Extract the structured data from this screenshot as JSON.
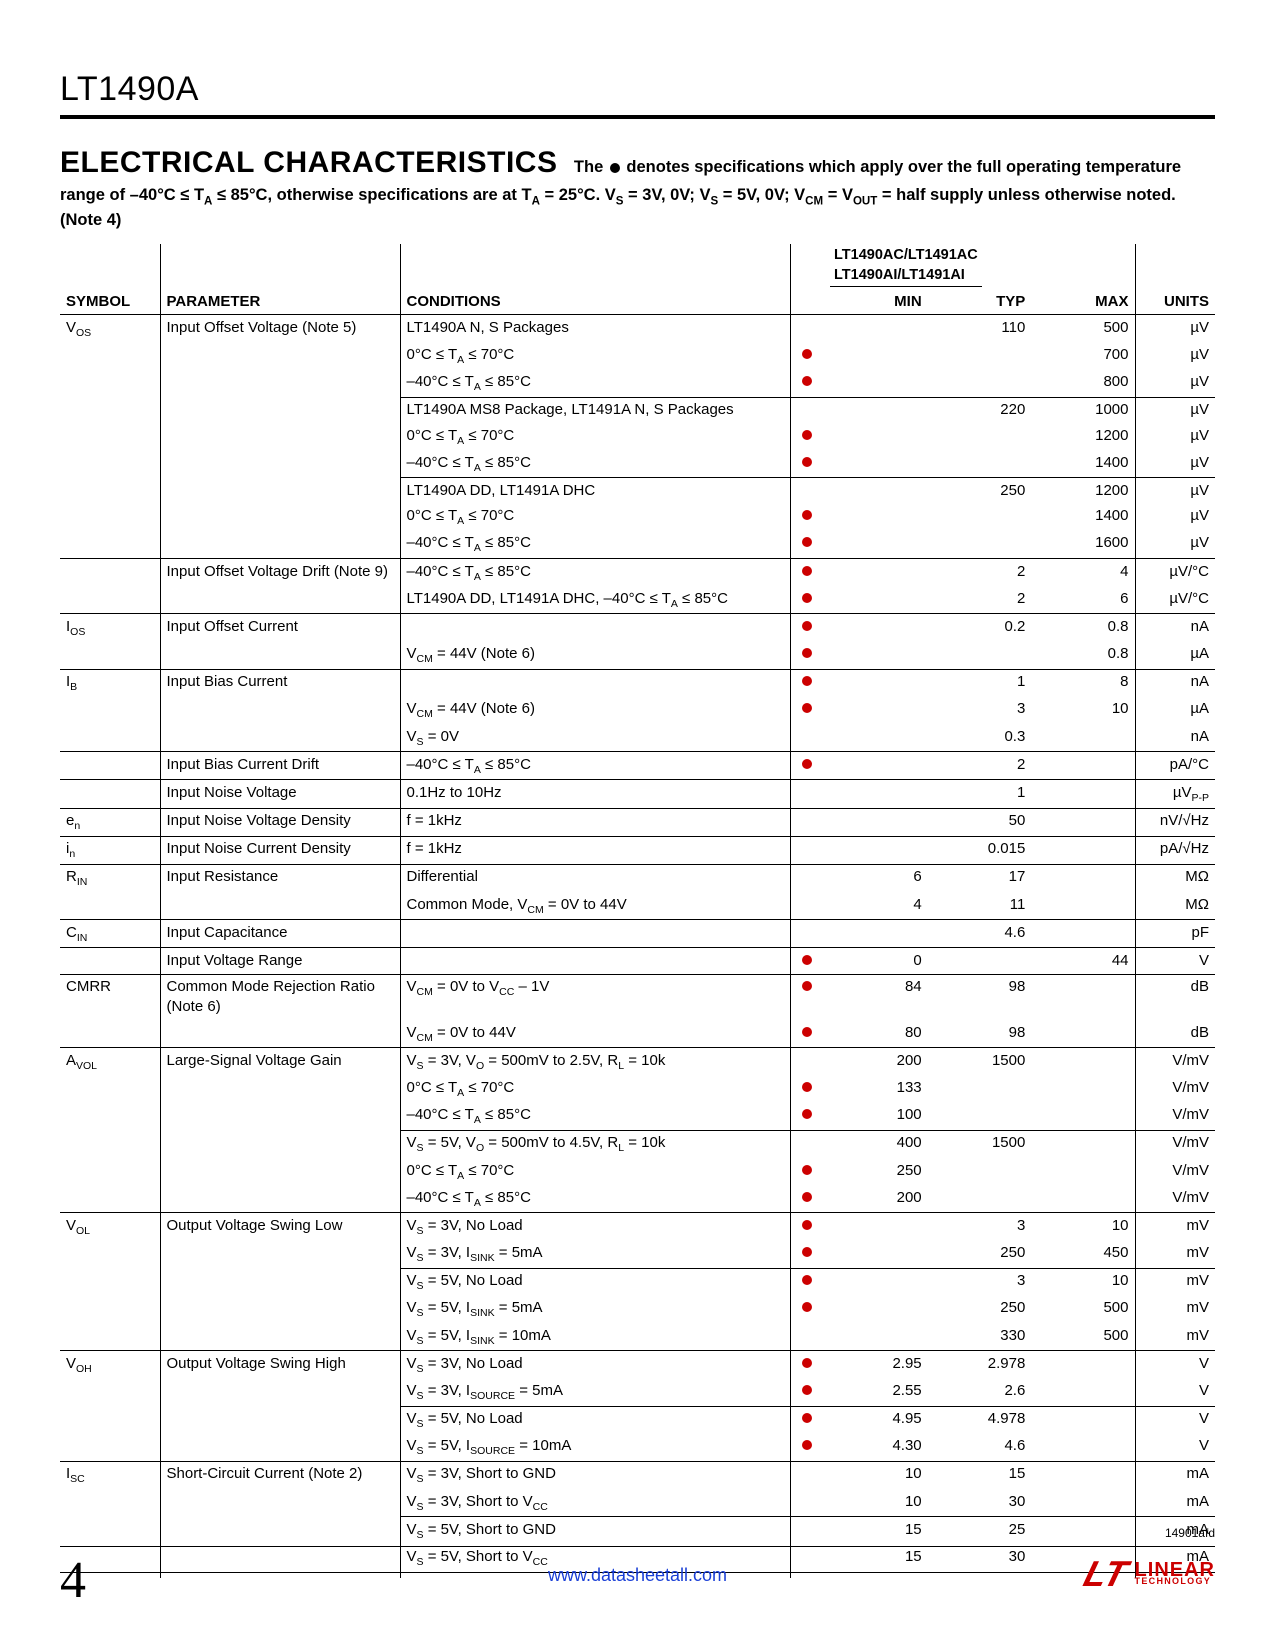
{
  "header": {
    "part_number": "LT1490A",
    "section_title": "ELECTRICAL CHARACTERISTICS",
    "desc_prefix": "The ",
    "desc_after_dot": " denotes specifications which apply over the full operating temperature range of –40°C ≤ T",
    "desc_sub1": "A",
    "desc_mid1": " ≤ 85°C, otherwise specifications are at T",
    "desc_sub2": "A",
    "desc_mid2": " = 25°C. V",
    "desc_sub3": "S",
    "desc_mid3": " = 3V, 0V; V",
    "desc_sub4": "S",
    "desc_mid4": " = 5V, 0V; V",
    "desc_sub5": "CM",
    "desc_mid5": " = V",
    "desc_sub6": "OUT",
    "desc_end": " = half supply unless otherwise noted. (Note 4)"
  },
  "table": {
    "supheader1": "LT1490AC/LT1491AC",
    "supheader2": "LT1490AI/LT1491AI",
    "columns": {
      "symbol": "SYMBOL",
      "parameter": "PARAMETER",
      "conditions": "CONDITIONS",
      "min": "MIN",
      "typ": "TYP",
      "max": "MAX",
      "units": "UNITS"
    },
    "rows": [
      {
        "sep": "major",
        "symbol_html": "V<sub>OS</sub>",
        "param": "Input Offset Voltage (Note 5)",
        "cond_html": "LT1490A N, S Packages",
        "dot": false,
        "min": "",
        "typ": "110",
        "max": "500",
        "units": "µV"
      },
      {
        "cond_html": "0°C ≤ T<sub>A</sub> ≤ 70°C",
        "dot": true,
        "max": "700",
        "units": "µV"
      },
      {
        "cond_html": "–40°C ≤ T<sub>A</sub> ≤ 85°C",
        "dot": true,
        "max": "800",
        "units": "µV"
      },
      {
        "sep": "mini",
        "cond_html": "LT1490A MS8 Package, LT1491A N, S Packages",
        "dot": false,
        "typ": "220",
        "max": "1000",
        "units": "µV"
      },
      {
        "cond_html": "0°C ≤ T<sub>A</sub> ≤ 70°C",
        "dot": true,
        "max": "1200",
        "units": "µV"
      },
      {
        "cond_html": "–40°C ≤ T<sub>A</sub> ≤ 85°C",
        "dot": true,
        "max": "1400",
        "units": "µV"
      },
      {
        "sep": "mini",
        "cond_html": "LT1490A DD, LT1491A DHC",
        "dot": false,
        "typ": "250",
        "max": "1200",
        "units": "µV"
      },
      {
        "cond_html": "0°C ≤ T<sub>A</sub> ≤ 70°C",
        "dot": true,
        "max": "1400",
        "units": "µV"
      },
      {
        "cond_html": "–40°C ≤ T<sub>A</sub> ≤ 85°C",
        "dot": true,
        "max": "1600",
        "units": "µV"
      },
      {
        "sep": "major",
        "param": "Input Offset Voltage Drift (Note 9)",
        "cond_html": "–40°C ≤ T<sub>A</sub> ≤ 85°C",
        "dot": true,
        "typ": "2",
        "max": "4",
        "units": "µV/°C"
      },
      {
        "cond_html": "LT1490A DD, LT1491A DHC, –40°C ≤ T<sub>A</sub> ≤ 85°C",
        "dot": true,
        "typ": "2",
        "max": "6",
        "units": "µV/°C"
      },
      {
        "sep": "major",
        "symbol_html": "I<sub>OS</sub>",
        "param": "Input Offset Current",
        "cond_html": "",
        "dot": true,
        "typ": "0.2",
        "max": "0.8",
        "units": "nA"
      },
      {
        "cond_html": "V<sub>CM</sub> = 44V (Note 6)",
        "dot": true,
        "max": "0.8",
        "units": "µA"
      },
      {
        "sep": "major",
        "symbol_html": "I<sub>B</sub>",
        "param": "Input Bias Current",
        "cond_html": "",
        "dot": true,
        "typ": "1",
        "max": "8",
        "units": "nA"
      },
      {
        "cond_html": "V<sub>CM</sub> = 44V (Note 6)",
        "dot": true,
        "typ": "3",
        "max": "10",
        "units": "µA"
      },
      {
        "cond_html": "V<sub>S</sub> = 0V",
        "dot": false,
        "typ": "0.3",
        "units": "nA"
      },
      {
        "sep": "major",
        "param": "Input Bias Current Drift",
        "cond_html": "–40°C ≤ T<sub>A</sub> ≤ 85°C",
        "dot": true,
        "typ": "2",
        "units": "pA/°C"
      },
      {
        "sep": "major",
        "param": "Input Noise Voltage",
        "cond_html": "0.1Hz to 10Hz",
        "dot": false,
        "typ": "1",
        "units_html": "µV<sub>P-P</sub>"
      },
      {
        "sep": "major",
        "symbol_html": "e<sub>n</sub>",
        "param": "Input Noise Voltage Density",
        "cond_html": "f = 1kHz",
        "dot": false,
        "typ": "50",
        "units": "nV/√Hz"
      },
      {
        "sep": "major",
        "symbol_html": "i<sub>n</sub>",
        "param": "Input Noise Current Density",
        "cond_html": "f = 1kHz",
        "dot": false,
        "typ": "0.015",
        "units": "pA/√Hz"
      },
      {
        "sep": "major",
        "symbol_html": "R<sub>IN</sub>",
        "param": "Input Resistance",
        "cond_html": "Differential",
        "dot": false,
        "min": "6",
        "typ": "17",
        "units": "MΩ"
      },
      {
        "cond_html": "Common Mode, V<sub>CM</sub> = 0V to 44V",
        "dot": false,
        "min": "4",
        "typ": "11",
        "units": "MΩ"
      },
      {
        "sep": "major",
        "symbol_html": "C<sub>IN</sub>",
        "param": "Input Capacitance",
        "cond_html": "",
        "dot": false,
        "typ": "4.6",
        "units": "pF"
      },
      {
        "sep": "major",
        "param": "Input Voltage Range",
        "cond_html": "",
        "dot": true,
        "min": "0",
        "max": "44",
        "units": "V"
      },
      {
        "sep": "major",
        "symbol_html": "CMRR",
        "param": "Common Mode Rejection Ratio (Note 6)",
        "cond_html": "V<sub>CM</sub> = 0V to V<sub>CC</sub> – 1V",
        "dot": true,
        "min": "84",
        "typ": "98",
        "units": "dB"
      },
      {
        "cond_html": "V<sub>CM</sub> = 0V to 44V",
        "dot": true,
        "min": "80",
        "typ": "98",
        "units": "dB"
      },
      {
        "sep": "major",
        "symbol_html": "A<sub>VOL</sub>",
        "param": "Large-Signal Voltage Gain",
        "cond_html": "V<sub>S</sub> = 3V, V<sub>O</sub> = 500mV to 2.5V, R<sub>L</sub> = 10k",
        "dot": false,
        "min": "200",
        "typ": "1500",
        "units": "V/mV"
      },
      {
        "cond_html": "0°C ≤ T<sub>A</sub> ≤ 70°C",
        "dot": true,
        "min": "133",
        "units": "V/mV"
      },
      {
        "cond_html": "–40°C ≤ T<sub>A</sub> ≤ 85°C",
        "dot": true,
        "min": "100",
        "units": "V/mV"
      },
      {
        "sep": "mini",
        "cond_html": "V<sub>S</sub> = 5V, V<sub>O</sub> = 500mV to 4.5V, R<sub>L</sub> = 10k",
        "dot": false,
        "min": "400",
        "typ": "1500",
        "units": "V/mV"
      },
      {
        "cond_html": "0°C ≤ T<sub>A</sub> ≤ 70°C",
        "dot": true,
        "min": "250",
        "units": "V/mV"
      },
      {
        "cond_html": "–40°C ≤ T<sub>A</sub> ≤ 85°C",
        "dot": true,
        "min": "200",
        "units": "V/mV"
      },
      {
        "sep": "major",
        "symbol_html": "V<sub>OL</sub>",
        "param": "Output Voltage Swing Low",
        "cond_html": "V<sub>S</sub> = 3V, No Load",
        "dot": true,
        "typ": "3",
        "max": "10",
        "units": "mV"
      },
      {
        "cond_html": "V<sub>S</sub> = 3V, I<sub>SINK</sub> = 5mA",
        "dot": true,
        "typ": "250",
        "max": "450",
        "units": "mV"
      },
      {
        "sep": "mini",
        "cond_html": "V<sub>S</sub> = 5V, No Load",
        "dot": true,
        "typ": "3",
        "max": "10",
        "units": "mV"
      },
      {
        "cond_html": "V<sub>S</sub> = 5V, I<sub>SINK</sub> = 5mA",
        "dot": true,
        "typ": "250",
        "max": "500",
        "units": "mV"
      },
      {
        "cond_html": "V<sub>S</sub> = 5V, I<sub>SINK</sub> = 10mA",
        "dot": false,
        "typ": "330",
        "max": "500",
        "units": "mV"
      },
      {
        "sep": "major",
        "symbol_html": "V<sub>OH</sub>",
        "param": "Output Voltage Swing High",
        "cond_html": "V<sub>S</sub> = 3V, No Load",
        "dot": true,
        "min": "2.95",
        "typ": "2.978",
        "units": "V"
      },
      {
        "cond_html": "V<sub>S</sub> = 3V, I<sub>SOURCE</sub> = 5mA",
        "dot": true,
        "min": "2.55",
        "typ": "2.6",
        "units": "V"
      },
      {
        "sep": "mini",
        "cond_html": "V<sub>S</sub> = 5V, No Load",
        "dot": true,
        "min": "4.95",
        "typ": "4.978",
        "units": "V"
      },
      {
        "cond_html": "V<sub>S</sub> = 5V, I<sub>SOURCE</sub> = 10mA",
        "dot": true,
        "min": "4.30",
        "typ": "4.6",
        "units": "V"
      },
      {
        "sep": "major",
        "symbol_html": "I<sub>SC</sub>",
        "param": "Short-Circuit Current (Note 2)",
        "cond_html": "V<sub>S</sub> = 3V, Short to GND",
        "dot": false,
        "min": "10",
        "typ": "15",
        "units": "mA"
      },
      {
        "cond_html": "V<sub>S</sub> = 3V, Short to V<sub>CC</sub>",
        "dot": false,
        "min": "10",
        "typ": "30",
        "units": "mA"
      },
      {
        "sep": "mini",
        "cond_html": "V<sub>S</sub> = 5V, Short to GND",
        "dot": false,
        "min": "15",
        "typ": "25",
        "units": "mA"
      },
      {
        "cond_html": "V<sub>S</sub> = 5V, Short to V<sub>CC</sub>",
        "dot": false,
        "min": "15",
        "typ": "30",
        "units": "mA"
      },
      {
        "sep": "major"
      }
    ]
  },
  "footer": {
    "doc_code": "14901afd",
    "page_number": "4",
    "site_url": "www.datasheetall.com",
    "logo_line1": "LINEAR",
    "logo_line2": "TECHNOLOGY"
  }
}
